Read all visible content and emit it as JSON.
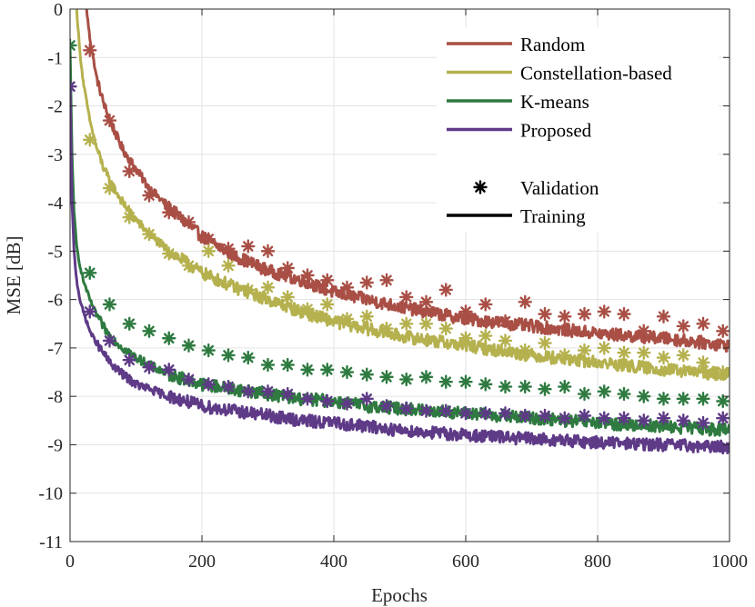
{
  "chart_data": {
    "type": "line",
    "title": "",
    "xlabel": "Epochs",
    "ylabel": "MSE [dB]",
    "xlim": [
      0,
      1000
    ],
    "ylim": [
      -11,
      0
    ],
    "grid": true,
    "legend_placement": "top-right",
    "x_ticks": [
      "0",
      "200",
      "400",
      "600",
      "800",
      "1000"
    ],
    "y_ticks": [
      "0",
      "-1",
      "-2",
      "-3",
      "-4",
      "-5",
      "-6",
      "-7",
      "-8",
      "-9",
      "-10",
      "-11"
    ],
    "legend": {
      "markers": {
        "validation": "Validation",
        "training": "Training"
      }
    },
    "series": [
      {
        "name": "Random",
        "color": "#A94F45",
        "training": {
          "x": [
            25,
            30,
            40,
            50,
            60,
            80,
            100,
            120,
            150,
            200,
            250,
            300,
            350,
            400,
            450,
            500,
            600,
            700,
            800,
            900,
            1000
          ],
          "y": [
            0.0,
            -0.6,
            -1.4,
            -1.9,
            -2.3,
            -2.9,
            -3.3,
            -3.7,
            -4.1,
            -4.7,
            -5.1,
            -5.4,
            -5.6,
            -5.85,
            -6.0,
            -6.15,
            -6.4,
            -6.55,
            -6.7,
            -6.8,
            -6.95
          ]
        },
        "validation": {
          "x": [
            30,
            60,
            90,
            120,
            150,
            180,
            210,
            240,
            270,
            300,
            330,
            360,
            390,
            420,
            450,
            480,
            510,
            540,
            570,
            600,
            630,
            660,
            690,
            720,
            750,
            780,
            810,
            840,
            870,
            900,
            930,
            960,
            990
          ],
          "y": [
            -0.85,
            -2.3,
            -3.35,
            -3.85,
            -4.2,
            -4.4,
            -4.75,
            -4.95,
            -4.9,
            -5.0,
            -5.35,
            -5.5,
            -5.6,
            -5.75,
            -5.65,
            -5.6,
            -5.95,
            -6.05,
            -5.8,
            -6.25,
            -6.1,
            -6.45,
            -6.05,
            -6.3,
            -6.35,
            -6.3,
            -6.25,
            -6.3,
            -6.65,
            -6.35,
            -6.55,
            -6.5,
            -6.65
          ]
        }
      },
      {
        "name": "Constellation-based",
        "color": "#B5B14E",
        "training": {
          "x": [
            10,
            15,
            20,
            30,
            40,
            50,
            60,
            80,
            100,
            120,
            150,
            200,
            250,
            300,
            350,
            400,
            450,
            500,
            600,
            700,
            800,
            900,
            1000
          ],
          "y": [
            0.0,
            -0.9,
            -1.5,
            -2.3,
            -2.85,
            -3.25,
            -3.55,
            -4.0,
            -4.35,
            -4.65,
            -5.0,
            -5.45,
            -5.75,
            -6.0,
            -6.25,
            -6.45,
            -6.6,
            -6.75,
            -6.95,
            -7.15,
            -7.3,
            -7.45,
            -7.55
          ]
        },
        "validation": {
          "x": [
            30,
            60,
            90,
            120,
            150,
            180,
            210,
            240,
            270,
            300,
            330,
            360,
            390,
            420,
            450,
            480,
            510,
            540,
            570,
            600,
            630,
            660,
            690,
            720,
            750,
            780,
            810,
            840,
            870,
            900,
            930,
            960,
            990
          ],
          "y": [
            -2.7,
            -3.7,
            -4.3,
            -4.65,
            -5.05,
            -5.3,
            -5.0,
            -5.3,
            -5.8,
            -5.75,
            -5.95,
            -6.2,
            -6.1,
            -6.4,
            -6.35,
            -6.6,
            -6.5,
            -6.5,
            -6.6,
            -6.8,
            -6.75,
            -6.85,
            -7.05,
            -6.9,
            -7.15,
            -7.05,
            -7.0,
            -7.1,
            -7.1,
            -7.2,
            -7.15,
            -7.3,
            -7.5
          ]
        }
      },
      {
        "name": "K-means",
        "color": "#2E7A40",
        "training": {
          "x": [
            0,
            3,
            6,
            10,
            15,
            20,
            30,
            40,
            50,
            60,
            80,
            100,
            120,
            150,
            200,
            250,
            300,
            350,
            400,
            450,
            500,
            600,
            700,
            800,
            900,
            1000
          ],
          "y": [
            -0.8,
            -3.0,
            -4.2,
            -4.9,
            -5.3,
            -5.6,
            -6.0,
            -6.3,
            -6.55,
            -6.75,
            -7.0,
            -7.2,
            -7.35,
            -7.55,
            -7.75,
            -7.85,
            -7.95,
            -8.05,
            -8.1,
            -8.2,
            -8.25,
            -8.35,
            -8.45,
            -8.55,
            -8.62,
            -8.7
          ]
        },
        "validation": {
          "x": [
            0,
            30,
            60,
            90,
            120,
            150,
            180,
            210,
            240,
            270,
            300,
            330,
            360,
            390,
            420,
            450,
            480,
            510,
            540,
            570,
            600,
            630,
            660,
            690,
            720,
            750,
            780,
            810,
            840,
            870,
            900,
            930,
            960,
            990
          ],
          "y": [
            -0.75,
            -5.45,
            -6.1,
            -6.5,
            -6.65,
            -6.8,
            -6.95,
            -7.05,
            -7.15,
            -7.2,
            -7.35,
            -7.35,
            -7.45,
            -7.45,
            -7.5,
            -7.55,
            -7.6,
            -7.65,
            -7.6,
            -7.7,
            -7.7,
            -7.75,
            -7.8,
            -7.8,
            -7.85,
            -7.8,
            -7.95,
            -7.9,
            -7.95,
            -8.0,
            -8.05,
            -8.05,
            -8.05,
            -8.1
          ]
        }
      },
      {
        "name": "Proposed",
        "color": "#5E3A87",
        "training": {
          "x": [
            0,
            3,
            6,
            10,
            15,
            20,
            30,
            40,
            50,
            60,
            80,
            100,
            120,
            150,
            200,
            250,
            300,
            350,
            400,
            450,
            500,
            600,
            700,
            800,
            900,
            1000
          ],
          "y": [
            -1.6,
            -4.0,
            -5.0,
            -5.6,
            -6.0,
            -6.25,
            -6.65,
            -6.9,
            -7.1,
            -7.3,
            -7.55,
            -7.75,
            -7.85,
            -8.0,
            -8.2,
            -8.3,
            -8.4,
            -8.5,
            -8.55,
            -8.62,
            -8.7,
            -8.8,
            -8.88,
            -8.95,
            -9.0,
            -9.05
          ]
        },
        "validation": {
          "x": [
            0,
            30,
            60,
            90,
            120,
            150,
            180,
            210,
            240,
            270,
            300,
            330,
            360,
            390,
            420,
            450,
            480,
            510,
            540,
            570,
            600,
            630,
            660,
            690,
            720,
            750,
            780,
            810,
            840,
            870,
            900,
            930,
            960,
            990
          ],
          "y": [
            -1.6,
            -6.25,
            -6.85,
            -7.25,
            -7.4,
            -7.45,
            -7.65,
            -7.75,
            -7.8,
            -7.9,
            -7.9,
            -7.95,
            -8.05,
            -8.1,
            -8.15,
            -8.05,
            -8.2,
            -8.25,
            -8.3,
            -8.3,
            -8.35,
            -8.35,
            -8.35,
            -8.4,
            -8.4,
            -8.45,
            -8.4,
            -8.45,
            -8.45,
            -8.5,
            -8.45,
            -8.5,
            -8.55,
            -8.45
          ]
        }
      }
    ]
  }
}
